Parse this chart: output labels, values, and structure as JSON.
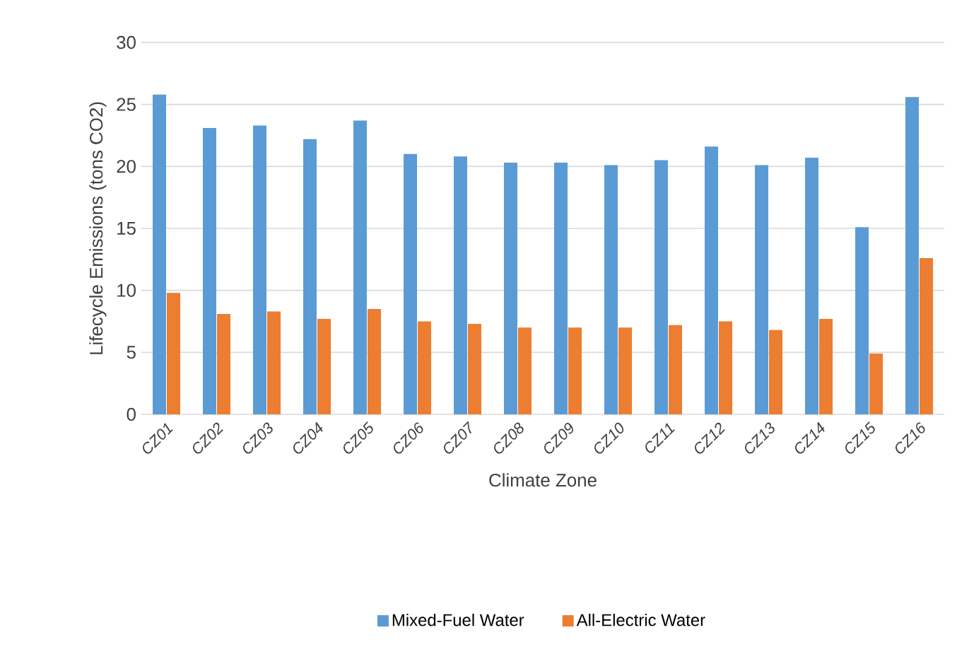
{
  "chart_data": {
    "type": "bar",
    "xlabel": "Climate Zone",
    "ylabel": "Lifecycle Emissions (tons CO2)",
    "categories": [
      "CZ01",
      "CZ02",
      "CZ03",
      "CZ04",
      "CZ05",
      "CZ06",
      "CZ07",
      "CZ08",
      "CZ09",
      "CZ10",
      "CZ11",
      "CZ12",
      "CZ13",
      "CZ14",
      "CZ15",
      "CZ16"
    ],
    "series": [
      {
        "name": "Mixed-Fuel Water",
        "color": "#5b9bd5",
        "values": [
          25.8,
          23.1,
          23.3,
          22.2,
          23.7,
          21.0,
          20.8,
          20.3,
          20.3,
          20.1,
          20.5,
          21.6,
          20.1,
          20.7,
          15.1,
          25.6
        ]
      },
      {
        "name": "All-Electric Water",
        "color": "#ed7d31",
        "values": [
          9.8,
          8.1,
          8.3,
          7.7,
          8.5,
          7.5,
          7.3,
          7.0,
          7.0,
          7.0,
          7.2,
          7.5,
          6.8,
          7.7,
          4.9,
          12.6
        ]
      }
    ],
    "ylim": [
      0,
      30
    ],
    "yticks": [
      0,
      5,
      10,
      15,
      20,
      25,
      30
    ],
    "grid": "y",
    "legend": "bottom"
  }
}
